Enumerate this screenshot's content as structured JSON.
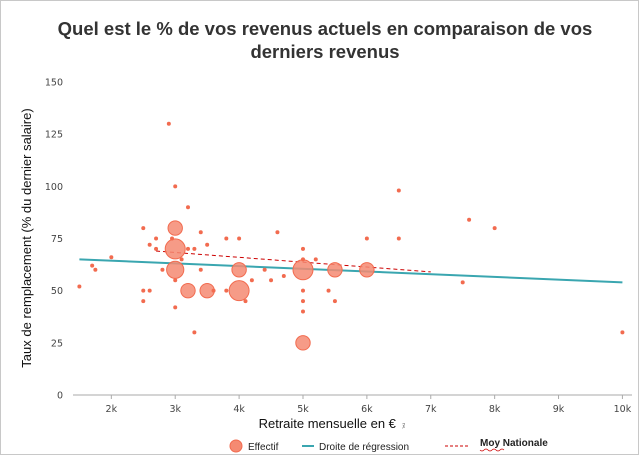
{
  "chart_data": {
    "type": "scatter",
    "title_line1": "Quel est le % de vos revenus actuels en comparaison de vos",
    "title_line2": "derniers revenus",
    "xlabel": "Retraite mensuelle en €",
    "xlabel_suffix": "ﾇ",
    "ylabel": "Taux de remplacement (% du dernier salaire)",
    "xlim": [
      1400,
      10150
    ],
    "ylim": [
      0,
      150
    ],
    "x_ticks": [
      {
        "value": 2000,
        "label": "2k"
      },
      {
        "value": 3000,
        "label": "3k"
      },
      {
        "value": 4000,
        "label": "4k"
      },
      {
        "value": 5000,
        "label": "5k"
      },
      {
        "value": 6000,
        "label": "6k"
      },
      {
        "value": 7000,
        "label": "7k"
      },
      {
        "value": 8000,
        "label": "8k"
      },
      {
        "value": 9000,
        "label": "9k"
      },
      {
        "value": 10000,
        "label": "10k"
      }
    ],
    "y_ticks": [
      {
        "value": 0,
        "label": "0"
      },
      {
        "value": 25,
        "label": "25"
      },
      {
        "value": 50,
        "label": "50"
      },
      {
        "value": 75,
        "label": "75"
      },
      {
        "value": 100,
        "label": "100"
      },
      {
        "value": 125,
        "label": "125"
      },
      {
        "value": 150,
        "label": "150"
      }
    ],
    "grid": false,
    "colors": {
      "points": "#f26b4f",
      "points_fill": "#f58a72",
      "regression": "#3aa6b0",
      "moy": "#cc0000",
      "axis": "#aaaaaa"
    },
    "points": [
      {
        "x": 1500,
        "y": 52,
        "n": 1
      },
      {
        "x": 1700,
        "y": 62,
        "n": 1
      },
      {
        "x": 1750,
        "y": 60,
        "n": 1
      },
      {
        "x": 2000,
        "y": 66,
        "n": 1
      },
      {
        "x": 2500,
        "y": 80,
        "n": 1
      },
      {
        "x": 2500,
        "y": 50,
        "n": 1
      },
      {
        "x": 2500,
        "y": 45,
        "n": 1
      },
      {
        "x": 2600,
        "y": 72,
        "n": 1
      },
      {
        "x": 2600,
        "y": 50,
        "n": 1
      },
      {
        "x": 2700,
        "y": 75,
        "n": 1
      },
      {
        "x": 2700,
        "y": 70,
        "n": 1
      },
      {
        "x": 2800,
        "y": 60,
        "n": 1
      },
      {
        "x": 2900,
        "y": 130,
        "n": 1
      },
      {
        "x": 2950,
        "y": 75,
        "n": 1
      },
      {
        "x": 3000,
        "y": 100,
        "n": 1
      },
      {
        "x": 3000,
        "y": 80,
        "n": 3
      },
      {
        "x": 3000,
        "y": 70,
        "n": 5
      },
      {
        "x": 3000,
        "y": 60,
        "n": 4
      },
      {
        "x": 3000,
        "y": 55,
        "n": 1
      },
      {
        "x": 3000,
        "y": 42,
        "n": 1
      },
      {
        "x": 3100,
        "y": 65,
        "n": 1
      },
      {
        "x": 3200,
        "y": 90,
        "n": 1
      },
      {
        "x": 3200,
        "y": 70,
        "n": 1
      },
      {
        "x": 3200,
        "y": 50,
        "n": 3
      },
      {
        "x": 3300,
        "y": 70,
        "n": 1
      },
      {
        "x": 3300,
        "y": 30,
        "n": 1
      },
      {
        "x": 3400,
        "y": 78,
        "n": 1
      },
      {
        "x": 3400,
        "y": 60,
        "n": 1
      },
      {
        "x": 3500,
        "y": 72,
        "n": 1
      },
      {
        "x": 3500,
        "y": 50,
        "n": 3
      },
      {
        "x": 3600,
        "y": 50,
        "n": 1
      },
      {
        "x": 3800,
        "y": 75,
        "n": 1
      },
      {
        "x": 3800,
        "y": 50,
        "n": 1
      },
      {
        "x": 4000,
        "y": 75,
        "n": 1
      },
      {
        "x": 4000,
        "y": 60,
        "n": 3
      },
      {
        "x": 4000,
        "y": 50,
        "n": 5
      },
      {
        "x": 4100,
        "y": 45,
        "n": 1
      },
      {
        "x": 4200,
        "y": 55,
        "n": 1
      },
      {
        "x": 4400,
        "y": 60,
        "n": 1
      },
      {
        "x": 4500,
        "y": 55,
        "n": 1
      },
      {
        "x": 4600,
        "y": 78,
        "n": 1
      },
      {
        "x": 4700,
        "y": 57,
        "n": 1
      },
      {
        "x": 5000,
        "y": 70,
        "n": 1
      },
      {
        "x": 5000,
        "y": 65,
        "n": 1
      },
      {
        "x": 5000,
        "y": 60,
        "n": 5
      },
      {
        "x": 5000,
        "y": 50,
        "n": 1
      },
      {
        "x": 5000,
        "y": 45,
        "n": 1
      },
      {
        "x": 5000,
        "y": 40,
        "n": 1
      },
      {
        "x": 5000,
        "y": 25,
        "n": 3
      },
      {
        "x": 5200,
        "y": 65,
        "n": 1
      },
      {
        "x": 5400,
        "y": 50,
        "n": 1
      },
      {
        "x": 5500,
        "y": 60,
        "n": 3
      },
      {
        "x": 5500,
        "y": 45,
        "n": 1
      },
      {
        "x": 6000,
        "y": 75,
        "n": 1
      },
      {
        "x": 6000,
        "y": 60,
        "n": 3
      },
      {
        "x": 6500,
        "y": 98,
        "n": 1
      },
      {
        "x": 6500,
        "y": 75,
        "n": 1
      },
      {
        "x": 7500,
        "y": 54,
        "n": 1
      },
      {
        "x": 7600,
        "y": 84,
        "n": 1
      },
      {
        "x": 8000,
        "y": 80,
        "n": 1
      },
      {
        "x": 10000,
        "y": 30,
        "n": 1
      }
    ],
    "regression": {
      "x1": 1500,
      "y1": 65,
      "x2": 10000,
      "y2": 54
    },
    "moy_nationale": {
      "x1": 2700,
      "y1": 69,
      "x2": 7000,
      "y2": 59
    },
    "legend": [
      {
        "name": "Effectif",
        "kind": "bubble"
      },
      {
        "name": "Droite de régression",
        "kind": "line"
      },
      {
        "name": "Moy Nationale",
        "kind": "dashed"
      }
    ]
  }
}
